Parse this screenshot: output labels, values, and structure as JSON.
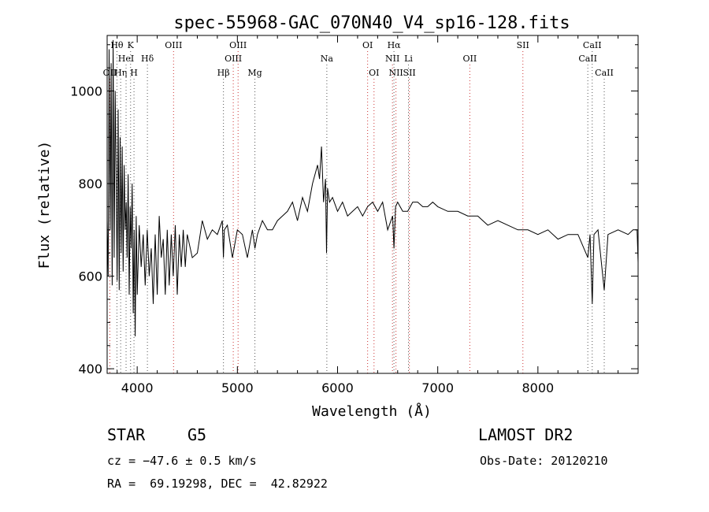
{
  "chart_data": {
    "type": "line",
    "title": "spec-55968-GAC_070N40_V4_sp16-128.fits",
    "xlabel": "Wavelength (Å)",
    "ylabel": "Flux (relative)",
    "xlim": [
      3700,
      9000
    ],
    "ylim": [
      390,
      1120
    ],
    "xticks": [
      4000,
      5000,
      6000,
      7000,
      8000
    ],
    "yticks": [
      400,
      600,
      800,
      1000
    ],
    "xtick_labels": [
      "4000",
      "5000",
      "6000",
      "7000",
      "8000"
    ],
    "ytick_labels": [
      "400",
      "600",
      "800",
      "1000"
    ],
    "grid": false,
    "colors": {
      "line": "#000000",
      "emission_marker": "#cc3333",
      "absorption_marker": "#555555"
    },
    "series": [
      {
        "x": [
          3700,
          3710,
          3720,
          3730,
          3740,
          3750,
          3760,
          3770,
          3780,
          3790,
          3800,
          3810,
          3820,
          3830,
          3840,
          3850,
          3860,
          3870,
          3880,
          3890,
          3900,
          3910,
          3920,
          3930,
          3940,
          3950,
          3960,
          3970,
          3980,
          3990,
          4000,
          4020,
          4040,
          4060,
          4080,
          4100,
          4120,
          4140,
          4160,
          4180,
          4200,
          4220,
          4240,
          4260,
          4280,
          4300,
          4320,
          4340,
          4360,
          4380,
          4400,
          4420,
          4440,
          4460,
          4480,
          4500,
          4550,
          4600,
          4650,
          4700,
          4750,
          4800,
          4850,
          4861,
          4870,
          4900,
          4950,
          5000,
          5050,
          5100,
          5150,
          5175,
          5200,
          5250,
          5300,
          5350,
          5400,
          5450,
          5500,
          5550,
          5600,
          5650,
          5700,
          5750,
          5800,
          5820,
          5840,
          5860,
          5880,
          5890,
          5900,
          5920,
          5950,
          6000,
          6050,
          6100,
          6150,
          6200,
          6250,
          6300,
          6350,
          6400,
          6450,
          6500,
          6550,
          6563,
          6580,
          6600,
          6650,
          6700,
          6750,
          6800,
          6850,
          6900,
          6950,
          7000,
          7100,
          7200,
          7300,
          7400,
          7500,
          7600,
          7700,
          7800,
          7900,
          8000,
          8100,
          8200,
          8300,
          8400,
          8498,
          8520,
          8542,
          8560,
          8600,
          8662,
          8700,
          8800,
          8900,
          8950,
          8990,
          9000
        ],
        "values": [
          720,
          600,
          1090,
          700,
          1060,
          580,
          1110,
          640,
          1000,
          820,
          590,
          960,
          570,
          900,
          650,
          880,
          610,
          840,
          700,
          760,
          640,
          820,
          560,
          750,
          660,
          800,
          520,
          700,
          470,
          730,
          560,
          710,
          620,
          690,
          580,
          700,
          600,
          660,
          540,
          690,
          560,
          730,
          640,
          680,
          560,
          700,
          580,
          690,
          600,
          710,
          560,
          690,
          620,
          700,
          620,
          690,
          640,
          650,
          720,
          680,
          700,
          690,
          720,
          640,
          700,
          710,
          640,
          700,
          690,
          640,
          700,
          660,
          690,
          720,
          700,
          700,
          720,
          730,
          740,
          760,
          720,
          770,
          740,
          800,
          840,
          810,
          880,
          760,
          810,
          650,
          790,
          760,
          770,
          740,
          760,
          730,
          740,
          750,
          730,
          750,
          760,
          740,
          760,
          700,
          730,
          660,
          750,
          760,
          740,
          740,
          760,
          760,
          750,
          750,
          760,
          750,
          740,
          740,
          730,
          730,
          710,
          720,
          710,
          700,
          700,
          690,
          700,
          680,
          690,
          690,
          640,
          690,
          540,
          690,
          700,
          570,
          690,
          700,
          690,
          700,
          700,
          630
        ]
      }
    ],
    "lines": [
      {
        "label": "OII",
        "x": 3727,
        "row": 3,
        "type": "emission"
      },
      {
        "label": "Hθ",
        "x": 3798,
        "row": 1,
        "type": "absorption"
      },
      {
        "label": "Hη",
        "x": 3835,
        "row": 3,
        "type": "absorption"
      },
      {
        "label": "HeI",
        "x": 3889,
        "row": 2,
        "type": "absorption"
      },
      {
        "label": "K",
        "x": 3934,
        "row": 1,
        "type": "absorption"
      },
      {
        "label": "H",
        "x": 3968,
        "row": 3,
        "type": "absorption"
      },
      {
        "label": "Hδ",
        "x": 4102,
        "row": 2,
        "type": "absorption"
      },
      {
        "label": "OIII",
        "x": 4363,
        "row": 1,
        "type": "emission"
      },
      {
        "label": "Hβ",
        "x": 4861,
        "row": 3,
        "type": "absorption"
      },
      {
        "label": "OIII",
        "x": 4959,
        "row": 2,
        "type": "emission"
      },
      {
        "label": "OIII",
        "x": 5007,
        "row": 1,
        "type": "emission"
      },
      {
        "label": "Mg",
        "x": 5175,
        "row": 3,
        "type": "absorption"
      },
      {
        "label": "Na",
        "x": 5893,
        "row": 2,
        "type": "absorption"
      },
      {
        "label": "OI",
        "x": 6300,
        "row": 1,
        "type": "emission"
      },
      {
        "label": "OI",
        "x": 6364,
        "row": 3,
        "type": "emission"
      },
      {
        "label": "NII",
        "x": 6548,
        "row": 2,
        "type": "emission"
      },
      {
        "label": "Hα",
        "x": 6563,
        "row": 1,
        "type": "absorption"
      },
      {
        "label": "NII",
        "x": 6583,
        "row": 3,
        "type": "emission"
      },
      {
        "label": "Li",
        "x": 6708,
        "row": 2,
        "type": "absorption"
      },
      {
        "label": "SII",
        "x": 6717,
        "row": 3,
        "type": "emission"
      },
      {
        "label": "OII",
        "x": 7320,
        "row": 2,
        "type": "emission"
      },
      {
        "label": "SII",
        "x": 7850,
        "row": 1,
        "type": "emission"
      },
      {
        "label": "CaII",
        "x": 8498,
        "row": 2,
        "type": "absorption"
      },
      {
        "label": "CaII",
        "x": 8542,
        "row": 1,
        "type": "absorption"
      },
      {
        "label": "CaII",
        "x": 8662,
        "row": 3,
        "type": "absorption"
      }
    ]
  },
  "info": {
    "object_class": "STAR",
    "subclass": "G5",
    "survey": "LAMOST DR2",
    "redshift": "cz = −47.6 ± 0.5 km/s",
    "obs_date": "Obs-Date: 20120210",
    "coords": "RA =  69.19298, DEC =  42.82922"
  }
}
